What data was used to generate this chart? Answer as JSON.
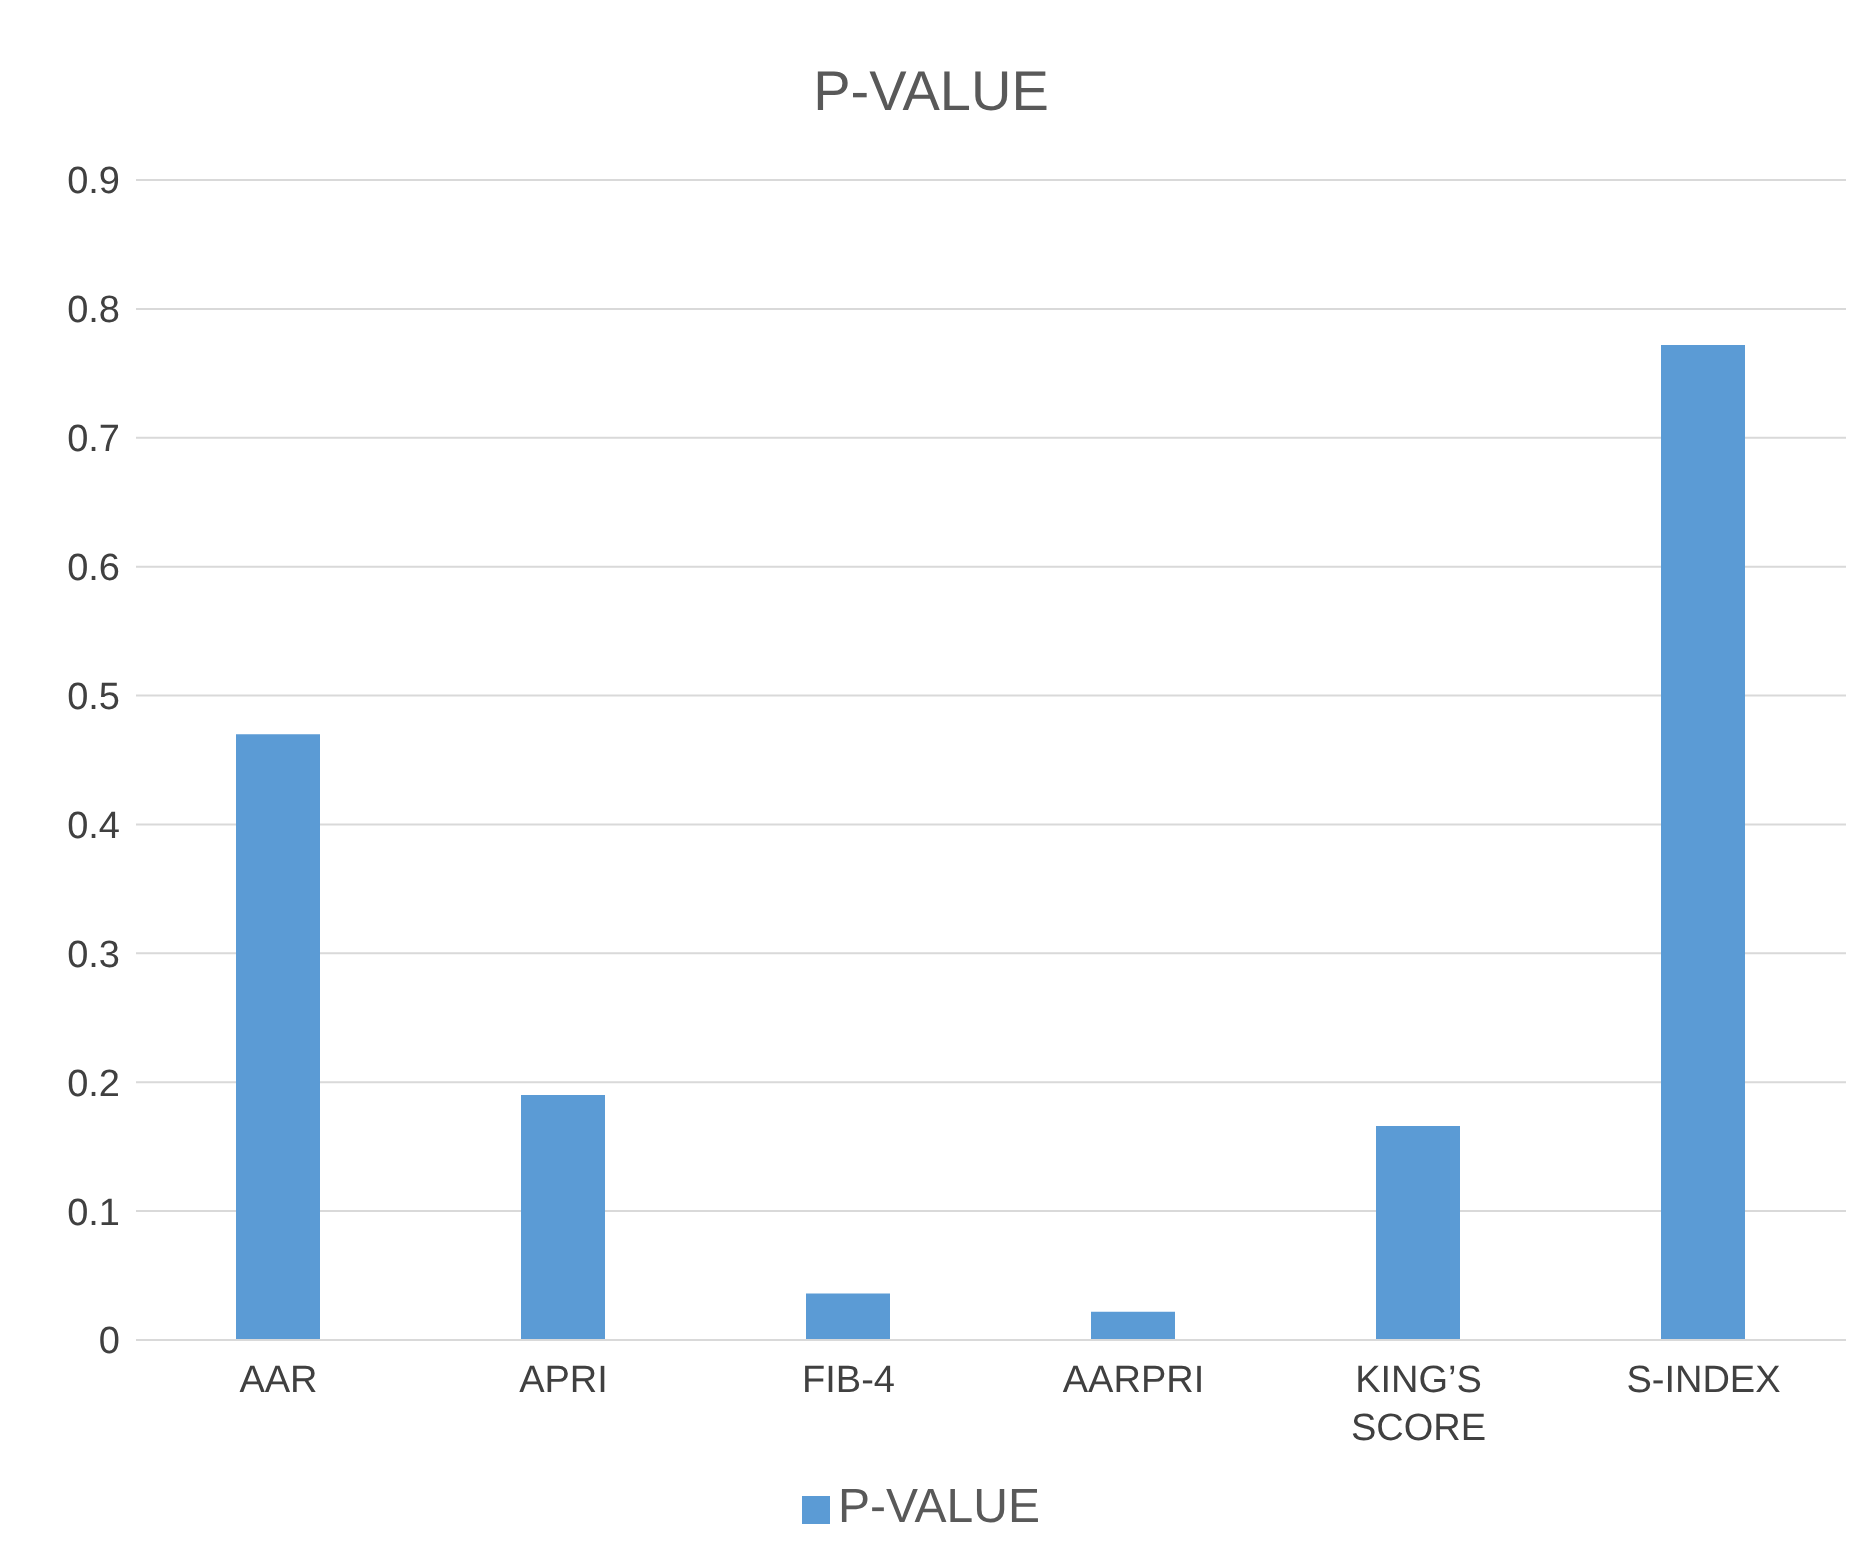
{
  "chart_data": {
    "type": "bar",
    "title": "P-VALUE",
    "categories": [
      "AAR",
      "APRI",
      "FIB-4",
      "AARPRI",
      "KING’S SCORE",
      "S-INDEX"
    ],
    "series": [
      {
        "name": "P-VALUE",
        "color": "#5b9bd5",
        "values": [
          0.47,
          0.19,
          0.036,
          0.022,
          0.166,
          0.772
        ]
      }
    ],
    "ylim": [
      0,
      0.9
    ],
    "yticks": [
      0,
      0.1,
      0.2,
      0.3,
      0.4,
      0.5,
      0.6,
      0.7,
      0.8,
      0.9
    ],
    "grid": "y",
    "legend": "bottom"
  }
}
